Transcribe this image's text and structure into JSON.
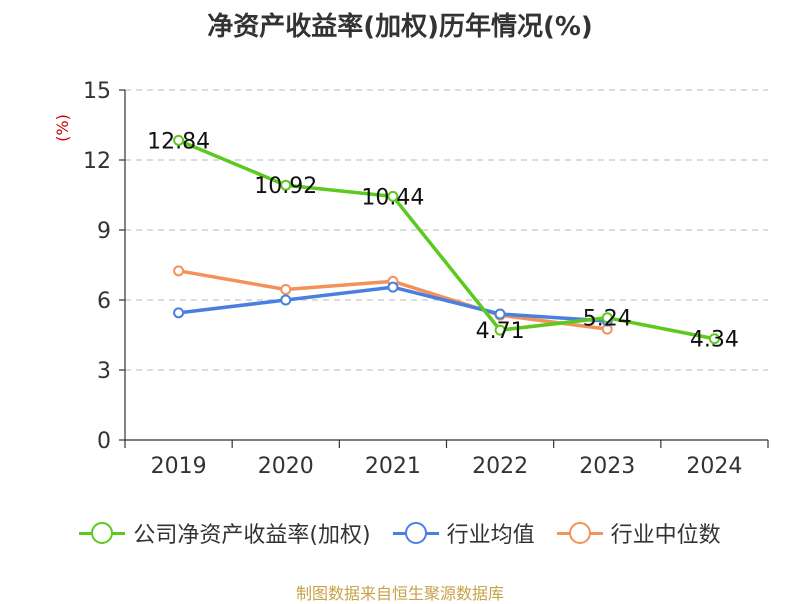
{
  "title": "净资产收益率(加权)历年情况(%)",
  "footer": "制图数据来自恒生聚源数据库",
  "chart_data": {
    "type": "line",
    "title": "净资产收益率(加权)历年情况(%)",
    "ylabel": "(%)",
    "xlabel": "",
    "categories": [
      "2019",
      "2020",
      "2021",
      "2022",
      "2023",
      "2024"
    ],
    "ylim": [
      0,
      15
    ],
    "yticks": [
      "0",
      "3",
      "6",
      "9",
      "12",
      "15"
    ],
    "grid": true,
    "legend_position": "bottom",
    "series": [
      {
        "name": "公司净资产收益率(加权)",
        "color": "#5cc91f",
        "values": [
          12.84,
          10.92,
          10.44,
          4.71,
          5.24,
          4.34
        ],
        "labels": [
          "12.84",
          "10.92",
          "10.44",
          "4.71",
          "5.24",
          "4.34"
        ]
      },
      {
        "name": "行业均值",
        "color": "#4a7fe0",
        "values": [
          5.45,
          6.0,
          6.55,
          5.4,
          5.1,
          null
        ]
      },
      {
        "name": "行业中位数",
        "color": "#f4915a",
        "values": [
          7.25,
          6.45,
          6.8,
          5.35,
          4.75,
          null
        ]
      }
    ]
  }
}
